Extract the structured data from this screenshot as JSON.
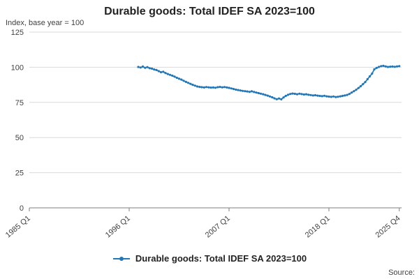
{
  "title": "Durable goods: Total IDEF SA 2023=100",
  "y_axis_label": "Index, base year = 100",
  "source_label": "Source:",
  "legend": {
    "label": "Durable goods: Total IDEF SA 2023=100"
  },
  "colors": {
    "line": "#2177b8",
    "grid": "#d9d9d9",
    "axis": "#7f7f7f",
    "text": "#414042"
  },
  "chart_data": {
    "type": "line",
    "title": "Durable goods: Total IDEF SA 2023=100",
    "xlabel": "",
    "ylabel": "Index, base year = 100",
    "ylim": [
      0,
      125
    ],
    "y_ticks": [
      0,
      25,
      50,
      75,
      100,
      125
    ],
    "x_range": [
      1985.0,
      2026.0
    ],
    "x_ticks": [
      {
        "label": "1985 Q1",
        "t": 1985.0
      },
      {
        "label": "1996 Q1",
        "t": 1996.0
      },
      {
        "label": "2007 Q1",
        "t": 2007.0
      },
      {
        "label": "2018 Q1",
        "t": 2018.0
      },
      {
        "label": "2025 Q4",
        "t": 2025.75
      }
    ],
    "grid": true,
    "legend_position": "bottom",
    "series": [
      {
        "name": "Durable goods: Total IDEF SA 2023=100",
        "start": "1997 Q1",
        "start_t": 1997.0,
        "step": 0.25,
        "values": [
          100.2,
          99.8,
          100.5,
          99.6,
          100.1,
          99.3,
          99.0,
          98.4,
          98.0,
          97.2,
          96.5,
          96.8,
          95.9,
          95.2,
          94.6,
          94.0,
          93.3,
          92.5,
          91.8,
          91.2,
          90.4,
          89.6,
          88.9,
          88.2,
          87.5,
          86.9,
          86.3,
          86.0,
          85.8,
          85.6,
          85.9,
          85.7,
          85.5,
          85.6,
          85.4,
          85.8,
          86.0,
          85.7,
          85.9,
          85.6,
          85.3,
          84.9,
          84.5,
          84.1,
          83.8,
          83.5,
          83.2,
          83.0,
          82.8,
          82.5,
          82.9,
          82.4,
          82.0,
          81.6,
          81.2,
          80.8,
          80.3,
          79.8,
          79.2,
          78.6,
          77.9,
          77.3,
          77.8,
          77.2,
          78.5,
          79.6,
          80.4,
          81.0,
          81.3,
          81.1,
          80.8,
          81.2,
          80.9,
          80.6,
          80.8,
          80.4,
          80.2,
          79.9,
          80.1,
          79.8,
          79.6,
          79.4,
          79.7,
          79.3,
          79.1,
          78.9,
          79.2,
          78.8,
          79.0,
          79.3,
          79.6,
          79.9,
          80.3,
          81.0,
          82.0,
          83.0,
          84.0,
          85.2,
          86.5,
          88.0,
          89.5,
          91.5,
          93.5,
          95.5,
          98.5,
          99.5,
          100.2,
          100.8,
          101.0,
          100.6,
          100.2,
          100.4,
          100.5,
          100.3,
          100.6,
          100.8
        ]
      }
    ]
  }
}
